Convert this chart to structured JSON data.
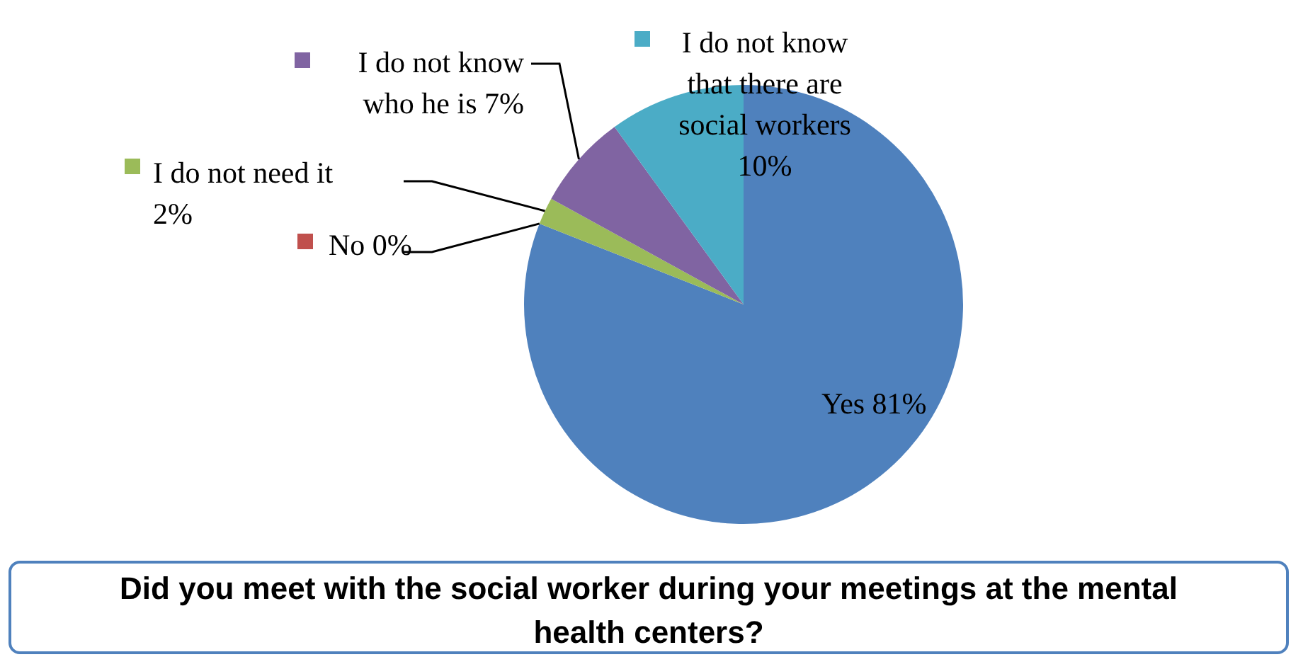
{
  "chart_data": {
    "type": "pie",
    "title": "Did you meet with the social worker during your meetings at the mental health centers?",
    "categories": [
      "Yes",
      "No",
      "I do not need it",
      "I do not know who he is",
      "I do not know that there are social workers"
    ],
    "values": [
      81,
      0,
      2,
      7,
      10
    ],
    "value_labels": [
      "81%",
      "0%",
      "2%",
      "7%",
      "10%"
    ],
    "colors": [
      "#4f81bd",
      "#c0504d",
      "#9bbb59",
      "#8064a2",
      "#4bacc6"
    ],
    "legend": "top left"
  }
}
